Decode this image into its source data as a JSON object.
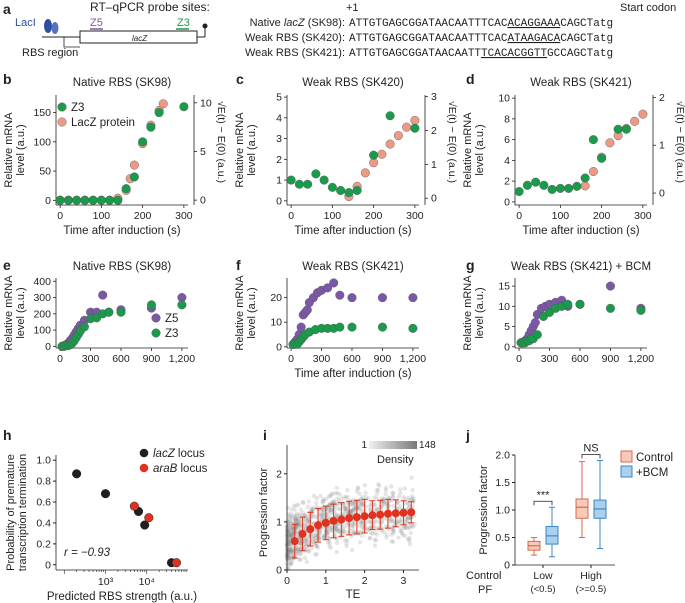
{
  "colors": {
    "green": "#1a9a4b",
    "salmon": "#ec9a86",
    "purple": "#7b58a6",
    "red": "#e0321f",
    "black": "#231f20",
    "control_box": "#f6c9b8",
    "bcm_box": "#a9d0ec",
    "density_dark": "#7a7a7a"
  },
  "panel_a": {
    "label": "a",
    "probe_title": "RT–qPCR probe sites:",
    "laci": "LacI",
    "z5": "Z5",
    "z3": "Z3",
    "lacz": "lacZ",
    "rbs_region": "RBS region",
    "plus_one": "+1",
    "start_codon": "Start codon",
    "seq_rows": [
      {
        "name_a": "Native ",
        "name_i": "lacZ",
        "name_b": " (SK98):",
        "pre": "ATTGTGAGCGGATAACAATTTCAC",
        "rbs": "ACAGGAAA",
        "post": "CAGCTatg"
      },
      {
        "name_a": "Weak RBS (SK420):",
        "name_i": "",
        "name_b": "",
        "pre": "ATTGTGAGCGGATAACAATTTCAC",
        "rbs": "ATAAGACA",
        "post": "CAGCTatg"
      },
      {
        "name_a": "Weak RBS (SK421):",
        "name_i": "",
        "name_b": "",
        "pre": "ATTGTGAGCGGATAACAATT",
        "rbs": "TCACACGGTT",
        "post": "GCCAGCTatg"
      }
    ]
  },
  "chart_data": [
    {
      "id": "b",
      "type": "scatter",
      "title": "Native RBS (SK98)",
      "xlabel": "Time after induction (s)",
      "ylabel": "Relative mRNA level (a.u.)",
      "y2label": "√E(t) − E(0) (a.u.)",
      "xlim": [
        -10,
        310
      ],
      "ylim": [
        -8,
        180
      ],
      "y2lim": [
        -0.5,
        10.8
      ],
      "xticks": [
        "0",
        "100",
        "200",
        "300"
      ],
      "xtick_vals": [
        0,
        100,
        200,
        300
      ],
      "yticks": [
        "0",
        "50",
        "100",
        "150"
      ],
      "ytick_vals": [
        0,
        50,
        100,
        150
      ],
      "y2ticks": [
        "0",
        "5",
        "10"
      ],
      "y2tick_vals": [
        0,
        5,
        10
      ],
      "legend": [
        "Z3",
        "LacZ protein"
      ],
      "series": [
        {
          "name": "LacZ protein",
          "color": "salmon",
          "axis": "right",
          "x": [
            0,
            20,
            40,
            60,
            80,
            100,
            120,
            140,
            160,
            170,
            180,
            200,
            220,
            240,
            250
          ],
          "y": [
            0,
            0,
            0,
            0,
            0,
            0,
            0,
            0.2,
            1.0,
            2.2,
            3.6,
            5.8,
            7.7,
            9.2,
            9.9
          ]
        },
        {
          "name": "Z3",
          "color": "green",
          "axis": "left",
          "x": [
            0,
            20,
            40,
            60,
            80,
            100,
            120,
            140,
            160,
            180,
            200,
            220,
            240,
            300
          ],
          "y": [
            0,
            0,
            0,
            0,
            0,
            0,
            0,
            0,
            20,
            40,
            100,
            125,
            150,
            160
          ]
        }
      ]
    },
    {
      "id": "c",
      "type": "scatter",
      "title": "Weak RBS (SK420)",
      "xlabel": "Time after induction (s)",
      "ylabel": "Relative mRNA level (a.u.)",
      "y2label": "√E(t) − E(0) (a.u.)",
      "xlim": [
        -10,
        310
      ],
      "ylim": [
        -0.2,
        5.1
      ],
      "y2lim": [
        -0.2,
        3.05
      ],
      "xticks": [
        "0",
        "100",
        "200",
        "300"
      ],
      "xtick_vals": [
        0,
        100,
        200,
        300
      ],
      "yticks": [
        "0",
        "1",
        "2",
        "3",
        "4",
        "5"
      ],
      "ytick_vals": [
        0,
        1,
        2,
        3,
        4,
        5
      ],
      "y2ticks": [
        "0",
        "1",
        "2",
        "3"
      ],
      "y2tick_vals": [
        0,
        1,
        2,
        3
      ],
      "series": [
        {
          "name": "LacZ protein",
          "color": "salmon",
          "axis": "right",
          "x": [
            140,
            160,
            180,
            200,
            220,
            240,
            260,
            280,
            300
          ],
          "y": [
            0.05,
            0.35,
            0.75,
            1.05,
            1.3,
            1.6,
            1.85,
            2.1,
            2.3
          ]
        },
        {
          "name": "Z3",
          "color": "green",
          "axis": "left",
          "x": [
            0,
            20,
            40,
            60,
            80,
            100,
            120,
            140,
            160,
            200,
            240,
            300
          ],
          "y": [
            1.0,
            0.8,
            0.8,
            1.3,
            1.0,
            0.65,
            0.5,
            0.4,
            0.5,
            2.2,
            4.1,
            3.5
          ]
        }
      ]
    },
    {
      "id": "d",
      "type": "scatter",
      "title": "Weak RBS (SK421)",
      "xlabel": "Time after induction (s)",
      "ylabel": "Relative mRNA level (a.u.)",
      "y2label": "√E(t) − E(0) (a.u.)",
      "xlim": [
        -10,
        310
      ],
      "ylim": [
        -0.3,
        10.3
      ],
      "y2lim": [
        -0.25,
        2.05
      ],
      "xticks": [
        "0",
        "100",
        "200",
        "300"
      ],
      "xtick_vals": [
        0,
        100,
        200,
        300
      ],
      "yticks": [
        "0",
        "2",
        "4",
        "6",
        "8",
        "10"
      ],
      "ytick_vals": [
        0,
        2,
        4,
        6,
        8,
        10
      ],
      "y2ticks": [
        "0",
        "1",
        "2"
      ],
      "y2tick_vals": [
        0,
        1,
        2
      ],
      "series": [
        {
          "name": "LacZ protein",
          "color": "salmon",
          "axis": "right",
          "x": [
            160,
            180,
            200,
            220,
            240,
            260,
            280,
            300
          ],
          "y": [
            0.15,
            0.45,
            0.75,
            1.05,
            1.2,
            1.35,
            1.5,
            1.65
          ]
        },
        {
          "name": "Z3",
          "color": "green",
          "axis": "left",
          "x": [
            0,
            20,
            40,
            60,
            80,
            100,
            120,
            140,
            160,
            180,
            200,
            240,
            260
          ],
          "y": [
            1.0,
            1.6,
            1.9,
            1.6,
            1.2,
            1.3,
            1.3,
            1.5,
            2.3,
            6.0,
            4.2,
            7.0,
            7.0
          ]
        }
      ]
    },
    {
      "id": "e",
      "type": "scatter",
      "title": "Native RBS (SK98)",
      "xlabel": "",
      "ylabel": "Relative mRNA level (a.u.)",
      "xlim": [
        -40,
        1260
      ],
      "ylim": [
        -10,
        420
      ],
      "xticks": [
        "0",
        "300",
        "600",
        "900",
        "1,200"
      ],
      "xtick_vals": [
        0,
        300,
        600,
        900,
        1200
      ],
      "yticks": [
        "0",
        "100",
        "200",
        "300",
        "400"
      ],
      "ytick_vals": [
        0,
        100,
        200,
        300,
        400
      ],
      "legend": [
        "Z5",
        "Z3"
      ],
      "series": [
        {
          "name": "Z5",
          "color": "purple",
          "x": [
            20,
            40,
            60,
            80,
            100,
            120,
            140,
            160,
            180,
            200,
            240,
            300,
            330,
            360,
            420,
            480,
            600,
            900,
            1200
          ],
          "y": [
            0,
            5,
            10,
            20,
            35,
            50,
            70,
            90,
            110,
            130,
            160,
            210,
            200,
            210,
            315,
            210,
            225,
            235,
            300
          ]
        },
        {
          "name": "Z3",
          "color": "green",
          "x": [
            20,
            40,
            60,
            80,
            100,
            120,
            140,
            160,
            180,
            200,
            240,
            300,
            360,
            420,
            480,
            600,
            900,
            1200
          ],
          "y": [
            0,
            0,
            5,
            5,
            10,
            20,
            35,
            55,
            75,
            95,
            120,
            170,
            175,
            200,
            210,
            210,
            255,
            255
          ]
        }
      ]
    },
    {
      "id": "f",
      "type": "scatter",
      "title": "Weak RBS (SK421)",
      "xlabel": "",
      "ylabel": "Relative mRNA level (a.u.)",
      "xlim": [
        -40,
        1260
      ],
      "ylim": [
        -0.5,
        28
      ],
      "xticks": [
        "0",
        "300",
        "600",
        "900",
        "1,200"
      ],
      "xtick_vals": [
        0,
        300,
        600,
        900,
        1200
      ],
      "yticks": [
        "0",
        "10",
        "20"
      ],
      "ytick_vals": [
        0,
        10,
        20
      ],
      "series": [
        {
          "name": "Z5",
          "color": "purple",
          "x": [
            20,
            40,
            60,
            80,
            100,
            120,
            140,
            160,
            180,
            220,
            260,
            300,
            360,
            420,
            480,
            600,
            900,
            1200
          ],
          "y": [
            1,
            2,
            3,
            5,
            8,
            13,
            14,
            15,
            18,
            20,
            22,
            23,
            24,
            26,
            21,
            20,
            20,
            20
          ]
        },
        {
          "name": "Z3",
          "color": "green",
          "x": [
            20,
            40,
            60,
            80,
            100,
            120,
            140,
            180,
            240,
            300,
            360,
            420,
            480,
            600,
            900,
            1200
          ],
          "y": [
            1,
            1,
            1,
            2,
            3,
            4,
            5,
            6,
            7,
            7.5,
            7.5,
            7.5,
            8,
            8,
            8,
            7.5
          ]
        }
      ]
    },
    {
      "id": "g",
      "type": "scatter",
      "title": "Weak RBS (SK421) + BCM",
      "xlabel": "",
      "ylabel": "Relative mRNA level (a.u.)",
      "xlim": [
        -40,
        1260
      ],
      "ylim": [
        -0.3,
        17
      ],
      "xticks": [
        "0",
        "300",
        "600",
        "900",
        "1,200"
      ],
      "xtick_vals": [
        0,
        300,
        600,
        900,
        1200
      ],
      "yticks": [
        "0",
        "5",
        "10",
        "15"
      ],
      "ytick_vals": [
        0,
        5,
        10,
        15
      ],
      "series": [
        {
          "name": "Z5",
          "color": "purple",
          "x": [
            20,
            40,
            60,
            80,
            100,
            120,
            140,
            160,
            180,
            220,
            260,
            300,
            360,
            420,
            480,
            600,
            900,
            1200
          ],
          "y": [
            1,
            1,
            1.5,
            2,
            3,
            4,
            5,
            6,
            8,
            9.5,
            10,
            10.5,
            11,
            11.5,
            10,
            10.5,
            15,
            9.5
          ]
        },
        {
          "name": "Z3",
          "color": "green",
          "x": [
            20,
            40,
            60,
            80,
            100,
            120,
            140,
            180,
            240,
            300,
            360,
            420,
            480,
            600,
            900,
            1200
          ],
          "y": [
            1,
            1,
            1,
            1.5,
            1.5,
            2,
            2,
            3,
            7.5,
            8.5,
            9.5,
            10,
            10.5,
            10.5,
            9.5,
            9
          ]
        }
      ]
    },
    {
      "id": "h",
      "type": "scatter",
      "xlabel": "Predicted RBS strength (a.u.)",
      "ylabel": "Probability of premature transcription termination",
      "xscale": "log",
      "xlim": [
        1.8,
        5.0
      ],
      "ylim": [
        -0.05,
        1.05
      ],
      "xticks": [
        "10³",
        "10⁴"
      ],
      "xtick_vals": [
        3,
        4
      ],
      "yticks": [
        "0",
        "0.2",
        "0.4",
        "0.6",
        "0.8",
        "1.0"
      ],
      "ytick_vals": [
        0,
        0.2,
        0.4,
        0.6,
        0.8,
        1.0
      ],
      "annotation": "r = −0.93",
      "legend_locus": "locus",
      "series": [
        {
          "name": "lacZ",
          "color": "black",
          "log10x": [
            2.3,
            3.0,
            3.8,
            3.95,
            4.6
          ],
          "y": [
            0.87,
            0.68,
            0.51,
            0.38,
            0.02
          ]
        },
        {
          "name": "araB",
          "color": "red",
          "log10x": [
            3.7,
            4.05,
            4.72
          ],
          "y": [
            0.56,
            0.45,
            0.02
          ]
        }
      ]
    },
    {
      "id": "i",
      "type": "scatter",
      "xlabel": "TE",
      "ylabel": "Progression factor",
      "xlim": [
        0,
        3.4
      ],
      "ylim": [
        0,
        2.6
      ],
      "xticks": [
        "0",
        "1",
        "2",
        "3"
      ],
      "xtick_vals": [
        0,
        1,
        2,
        3
      ],
      "yticks": [
        "0",
        "1",
        "2"
      ],
      "ytick_vals": [
        0,
        1,
        2
      ],
      "density_label": "Density",
      "density_range": [
        "1",
        "148"
      ],
      "binned_means": {
        "x": [
          0.2,
          0.4,
          0.6,
          0.8,
          1.0,
          1.2,
          1.4,
          1.6,
          1.8,
          2.0,
          2.2,
          2.4,
          2.6,
          2.8,
          3.0,
          3.2
        ],
        "y": [
          0.6,
          0.75,
          0.85,
          0.93,
          0.98,
          1.02,
          1.05,
          1.08,
          1.1,
          1.12,
          1.14,
          1.15,
          1.17,
          1.18,
          1.19,
          1.2
        ],
        "err": [
          0.35,
          0.35,
          0.35,
          0.35,
          0.35,
          0.35,
          0.35,
          0.35,
          0.35,
          0.35,
          0.3,
          0.3,
          0.3,
          0.28,
          0.25,
          0.22
        ]
      }
    },
    {
      "id": "j",
      "type": "box",
      "ylabel": "Progression factor",
      "ylim": [
        0,
        2.0
      ],
      "yticks": [
        "0",
        "0.5",
        "1.0",
        "1.5",
        "2.0"
      ],
      "ytick_vals": [
        0,
        0.5,
        1.0,
        1.5,
        2.0
      ],
      "row_label_1": "Control",
      "row_label_2": "PF",
      "groups": [
        {
          "name": "Low",
          "sub": "(<0.5)",
          "sig": "***"
        },
        {
          "name": "High",
          "sub": "(>=0.5)",
          "sig": "NS"
        }
      ],
      "legend": [
        "Control",
        "+BCM"
      ],
      "boxes": [
        {
          "group": 0,
          "series": "Control",
          "whisker": [
            0.18,
            0.5
          ],
          "q": [
            0.27,
            0.35,
            0.43
          ]
        },
        {
          "group": 0,
          "series": "+BCM",
          "whisker": [
            0.15,
            1.05
          ],
          "q": [
            0.38,
            0.53,
            0.7
          ]
        },
        {
          "group": 1,
          "series": "Control",
          "whisker": [
            0.5,
            1.88
          ],
          "q": [
            0.85,
            1.05,
            1.2
          ]
        },
        {
          "group": 1,
          "series": "+BCM",
          "whisker": [
            0.3,
            1.9
          ],
          "q": [
            0.85,
            1.02,
            1.18
          ]
        }
      ]
    }
  ]
}
